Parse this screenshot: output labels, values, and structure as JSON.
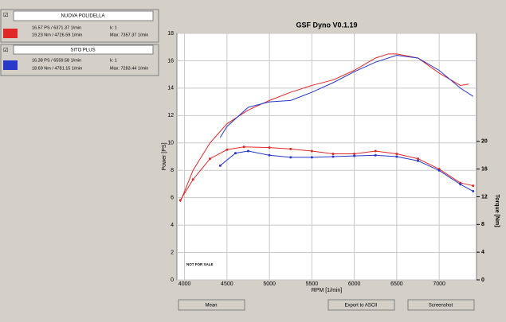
{
  "runs": [
    {
      "checkbox": "☑",
      "name": "NUOVA POLIDELLA",
      "power": "16.57 PS / 6371.37 1/min",
      "k": "k: 1",
      "torque": "19.23 Nm / 4726.59 1/min",
      "max": "Max: 7357.37 1/min"
    },
    {
      "checkbox": "☑",
      "name": "SITO PLUS",
      "power": "16.38 PS / 6559.58 1/min",
      "k": "k: 1",
      "torque": "18.69 Nm / 4781.15 1/min",
      "max": "Max: 7283.44 1/min"
    }
  ],
  "buttons": [
    "Mean",
    "Export to ASCII",
    "Screenshot"
  ],
  "chart_data": {
    "type": "line",
    "title": "GSF Dyno V0.1.19",
    "xlabel": "RPM [1/min]",
    "ylabel": "Power [PS]",
    "y2label": "Torque [Nm]",
    "annotation": "NOT FOR SALE",
    "xlim": [
      3910,
      7440
    ],
    "xticks": [
      4000,
      4500,
      5000,
      5500,
      6000,
      6500,
      7000
    ],
    "ylim": [
      0,
      18
    ],
    "yticks": [
      0,
      2,
      4,
      6,
      8,
      10,
      12,
      14,
      16,
      18
    ],
    "y2lim": [
      0,
      35.6
    ],
    "y2ticks": [
      0,
      4,
      8,
      12,
      16,
      20
    ],
    "grid": true,
    "series": [
      {
        "name": "NUOVA POLIDELLA",
        "color": "#e02828",
        "x": [
          3950,
          4100,
          4300,
          4500,
          4750,
          5000,
          5250,
          5500,
          5750,
          6000,
          6250,
          6400,
          6500,
          6750,
          7000,
          7250,
          7350
        ],
        "values": [
          5.7,
          8.0,
          10.0,
          11.4,
          12.4,
          13.1,
          13.7,
          14.2,
          14.6,
          15.3,
          16.2,
          16.5,
          16.5,
          16.2,
          15.1,
          14.2,
          14.3
        ]
      },
      {
        "name": "SITO PLUS",
        "color": "#2838c8",
        "x": [
          4420,
          4500,
          4750,
          5000,
          5250,
          5500,
          5750,
          6000,
          6250,
          6500,
          6750,
          7000,
          7250,
          7400
        ],
        "values": [
          10.4,
          11.2,
          12.6,
          13.0,
          13.1,
          13.7,
          14.4,
          15.2,
          15.9,
          16.4,
          16.2,
          15.3,
          14.0,
          13.4
        ]
      },
      {
        "color": "#e02828",
        "axis": "y2",
        "x": [
          3950,
          4100,
          4300,
          4500,
          4700,
          5000,
          5250,
          5500,
          5750,
          6000,
          6250,
          6500,
          6750,
          7000,
          7250,
          7400
        ],
        "values": [
          11.5,
          14.5,
          17.5,
          18.8,
          19.2,
          19.1,
          18.9,
          18.6,
          18.2,
          18.2,
          18.6,
          18.2,
          17.5,
          16.0,
          14.0,
          13.6
        ]
      },
      {
        "color": "#2838c8",
        "axis": "y2",
        "x": [
          4420,
          4600,
          4750,
          5000,
          5250,
          5500,
          5750,
          6000,
          6250,
          6500,
          6750,
          7000,
          7250,
          7400
        ],
        "values": [
          16.5,
          18.3,
          18.6,
          18.0,
          17.7,
          17.7,
          17.8,
          17.9,
          18.0,
          17.8,
          17.2,
          15.8,
          13.8,
          12.8
        ]
      }
    ]
  }
}
